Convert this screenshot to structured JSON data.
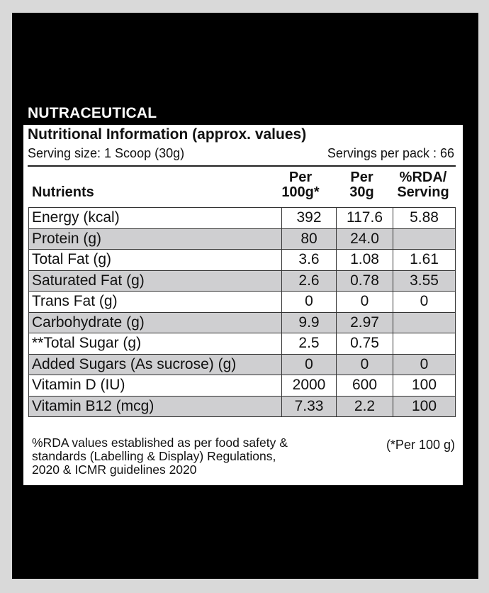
{
  "brand": "NUTRACEUTICAL",
  "panel": {
    "title": "Nutritional Information (approx. values)",
    "serving_size": "Serving size: 1 Scoop (30g)",
    "servings_per_pack": "Servings per pack :  66"
  },
  "table": {
    "headers": {
      "nutrients": "Nutrients",
      "col1_line1": "Per",
      "col1_line2": "100g*",
      "col2_line1": "Per",
      "col2_line2": "30g",
      "col3_line1": "%RDA/",
      "col3_line2": "Serving"
    },
    "rows": [
      {
        "name": "Energy (kcal)",
        "per100g": "392",
        "per30g": "117.6",
        "rda": "5.88"
      },
      {
        "name": "Protein (g)",
        "per100g": "80",
        "per30g": "24.0",
        "rda": ""
      },
      {
        "name": "Total Fat (g)",
        "per100g": "3.6",
        "per30g": "1.08",
        "rda": "1.61"
      },
      {
        "name": "Saturated Fat (g)",
        "per100g": "2.6",
        "per30g": "0.78",
        "rda": "3.55"
      },
      {
        "name": "Trans Fat (g)",
        "per100g": "0",
        "per30g": "0",
        "rda": "0"
      },
      {
        "name": "Carbohydrate (g)",
        "per100g": "9.9",
        "per30g": "2.97",
        "rda": ""
      },
      {
        "name": "**Total Sugar (g)",
        "per100g": "2.5",
        "per30g": "0.75",
        "rda": ""
      },
      {
        "name": "Added Sugars (As sucrose) (g)",
        "per100g": "0",
        "per30g": "0",
        "rda": "0"
      },
      {
        "name": "Vitamin D (IU)",
        "per100g": "2000",
        "per30g": "600",
        "rda": "100"
      },
      {
        "name": "Vitamin B12 (mcg)",
        "per100g": "7.33",
        "per30g": "2.2",
        "rda": "100"
      }
    ]
  },
  "footnote": {
    "line1": "%RDA values established as per food safety &",
    "line2": "standards (Labelling & Display) Regulations,",
    "line3": "2020 & ICMR guidelines 2020",
    "per_note": "(*Per 100 g)"
  },
  "colors": {
    "background": "#000000",
    "page_border": "#d9d9d9",
    "panel": "#ffffff",
    "shaded_row": "#cfcfd1"
  }
}
